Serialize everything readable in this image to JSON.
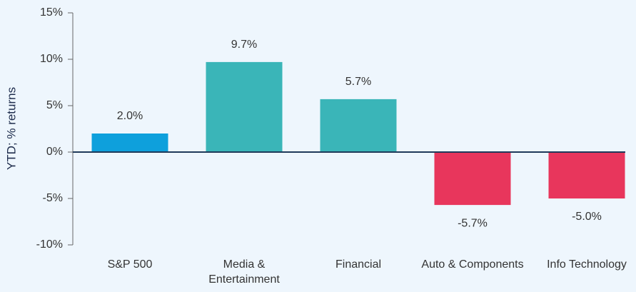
{
  "chart_data": {
    "type": "bar",
    "y_label": "YTD; % returns",
    "categories": [
      "S&P 500",
      "Media & Entertainment",
      "Financial",
      "Auto & Components",
      "Info Technology"
    ],
    "values": [
      2.0,
      9.7,
      5.7,
      -5.7,
      -5.0
    ],
    "value_labels": [
      "2.0%",
      "9.7%",
      "5.7%",
      "-5.7%",
      "-5.0%"
    ],
    "colors": [
      "#0ea0dc",
      "#3ab5b8",
      "#3ab5b8",
      "#e8365c",
      "#e8365c"
    ],
    "ylim": [
      -10,
      15
    ],
    "yticks": [
      {
        "value": -10,
        "label": "-10%"
      },
      {
        "value": -5,
        "label": "-5%"
      },
      {
        "value": 0,
        "label": "0%"
      },
      {
        "value": 5,
        "label": "5%"
      },
      {
        "value": 10,
        "label": "10%"
      },
      {
        "value": 15,
        "label": "15%"
      }
    ],
    "grid": false
  }
}
